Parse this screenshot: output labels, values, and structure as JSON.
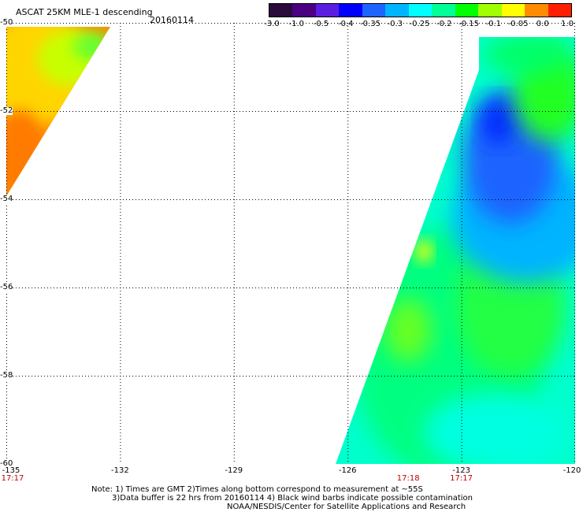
{
  "header": {
    "title": "ASCAT 25KM MLE-1 descending",
    "date": "20160114"
  },
  "color_scale": {
    "labels": [
      "-3.0",
      "-1.0",
      "-0.5",
      "-0.4",
      "-0.35",
      "-0.3",
      "-0.25",
      "-0.2",
      "-0.15",
      "-0.1",
      "-0.05",
      "0.0",
      "1.0"
    ],
    "colors": [
      "#2a0a3a",
      "#4b0082",
      "#5a1ee0",
      "#0000ff",
      "#1e64ff",
      "#00b4ff",
      "#00ffff",
      "#00ff96",
      "#00ff00",
      "#a0ff00",
      "#ffff00",
      "#ff8c00",
      "#ff1e00"
    ]
  },
  "map": {
    "lat_labels": [
      "-50",
      "-52",
      "-54",
      "-56",
      "-58",
      "-60"
    ],
    "lat_values": [
      -50,
      -52,
      -54,
      -56,
      -58,
      -60
    ],
    "lon_labels": [
      "-135",
      "-132",
      "-129",
      "-126",
      "-123",
      "-120"
    ],
    "lon_values": [
      -135,
      -132,
      -129,
      -126,
      -123,
      -120
    ],
    "time_labels": [
      {
        "text": "17:17",
        "lon": -135
      },
      {
        "text": "17:18",
        "lon": -124.4
      },
      {
        "text": "17:17",
        "lon": -123
      }
    ]
  },
  "notes": {
    "line1": "Note: 1) Times are GMT 2)Times along bottom correspond to measurement at ~55S",
    "line2": "3)Data buffer is 22 hrs from 20160114 4) Black wind barbs indicate possible contamination",
    "line3": "NOAA/NESDIS/Center for Satellite Applications and Research"
  }
}
